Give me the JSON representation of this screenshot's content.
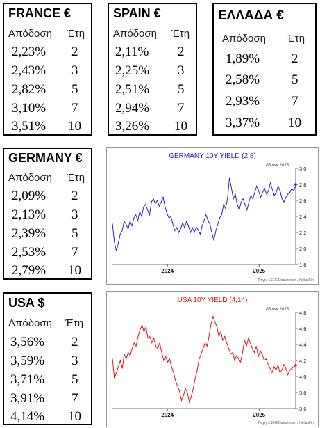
{
  "tables": [
    {
      "id": "france",
      "title": "FRANCE €",
      "col1": "Απόδοση",
      "col2": "Έτη",
      "rows": [
        [
          "2,23%",
          "2"
        ],
        [
          "2,43%",
          "3"
        ],
        [
          "2,82%",
          "5"
        ],
        [
          "3,10%",
          "7"
        ],
        [
          "3,51%",
          "10"
        ]
      ]
    },
    {
      "id": "spain",
      "title": "SPAIN €",
      "col1": "Απόδοση",
      "col2": "Έτη",
      "rows": [
        [
          "2,11%",
          "2"
        ],
        [
          "2,25%",
          "3"
        ],
        [
          "2,51%",
          "5"
        ],
        [
          "2,94%",
          "7"
        ],
        [
          "3,26%",
          "10"
        ]
      ]
    },
    {
      "id": "greece",
      "title": "ΕΛΛΑΔΑ €",
      "col1": "Απόδοση",
      "col2": "Έτη",
      "rows": [
        [
          "1,89%",
          "2"
        ],
        [
          "2,58%",
          "5"
        ],
        [
          "2,93%",
          "7"
        ],
        [
          "3,37%",
          "10"
        ]
      ]
    },
    {
      "id": "germany",
      "title": "GERMANY €",
      "col1": "Απόδοση",
      "col2": "Έτη",
      "rows": [
        [
          "2,09%",
          "2"
        ],
        [
          "2,13%",
          "3"
        ],
        [
          "2,39%",
          "5"
        ],
        [
          "2,53%",
          "7"
        ],
        [
          "2,79%",
          "10"
        ]
      ]
    },
    {
      "id": "usa",
      "title": "USA $",
      "col1": "Απόδοση",
      "col2": "Έτη",
      "rows": [
        [
          "3,56%",
          "2"
        ],
        [
          "3,59%",
          "3"
        ],
        [
          "3,71%",
          "5"
        ],
        [
          "3,91%",
          "7"
        ],
        [
          "4,14%",
          "10"
        ]
      ]
    }
  ],
  "chart_data": [
    {
      "type": "line",
      "id": "germany-chart",
      "title": "GERMANY 10Y YIELD  (2,8)",
      "date_label": "05 Δεκ 2025",
      "source": "Πηγή: LSEG Datastream / HellasFin",
      "color": "#2222bb",
      "ylim": [
        1.8,
        3.0
      ],
      "yticks": [
        "1,8",
        "2,0",
        "2,2",
        "2,4",
        "2,6",
        "2,8",
        "3,0"
      ],
      "xticks": [
        "2024",
        "2025"
      ],
      "values": [
        2.31,
        2.08,
        1.97,
        2.06,
        2.18,
        2.22,
        2.34,
        2.3,
        2.24,
        2.34,
        2.28,
        2.38,
        2.42,
        2.35,
        2.46,
        2.4,
        2.52,
        2.55,
        2.48,
        2.42,
        2.58,
        2.62,
        2.56,
        2.6,
        2.53,
        2.58,
        2.64,
        2.52,
        2.44,
        2.38,
        2.4,
        2.3,
        2.22,
        2.26,
        2.2,
        2.25,
        2.32,
        2.26,
        2.34,
        2.28,
        2.2,
        2.26,
        2.2,
        2.27,
        2.23,
        2.18,
        2.28,
        2.35,
        2.42,
        2.35,
        2.3,
        2.2,
        2.1,
        2.22,
        2.3,
        2.38,
        2.42,
        2.55,
        2.5,
        2.62,
        2.88,
        2.76,
        2.62,
        2.68,
        2.55,
        2.48,
        2.58,
        2.62,
        2.55,
        2.48,
        2.58,
        2.66,
        2.62,
        2.7,
        2.78,
        2.72,
        2.64,
        2.7,
        2.75,
        2.68,
        2.72,
        2.82,
        2.74,
        2.66,
        2.7,
        2.78,
        2.72,
        2.62,
        2.58,
        2.64,
        2.68,
        2.7,
        2.75,
        2.72,
        2.8
      ]
    },
    {
      "type": "line",
      "id": "usa-chart",
      "title": "USA 10Y YIELD  (4,14)",
      "date_label": "05 Δεκ 2025",
      "source": "Πηγή: LSEG Datastream / HellasFin",
      "color": "#dd1111",
      "ylim": [
        3.6,
        4.8
      ],
      "yticks": [
        "3,6",
        "3,8",
        "4,0",
        "4,2",
        "4,4",
        "4,6",
        "4,8"
      ],
      "xticks": [
        "2024",
        "2025"
      ],
      "values": [
        4.22,
        3.98,
        4.05,
        4.12,
        4.2,
        4.1,
        4.28,
        4.22,
        4.3,
        4.26,
        4.35,
        4.42,
        4.38,
        4.5,
        4.58,
        4.64,
        4.56,
        4.62,
        4.48,
        4.5,
        4.42,
        4.48,
        4.38,
        4.35,
        4.42,
        4.3,
        4.2,
        4.25,
        4.18,
        4.22,
        4.12,
        4.05,
        3.95,
        3.88,
        3.82,
        3.7,
        3.76,
        3.85,
        3.8,
        3.68,
        3.75,
        3.85,
        3.98,
        4.08,
        4.22,
        4.28,
        4.35,
        4.42,
        4.38,
        4.5,
        4.65,
        4.75,
        4.68,
        4.62,
        4.5,
        4.56,
        4.45,
        4.5,
        4.42,
        4.35,
        4.28,
        4.3,
        4.2,
        4.26,
        4.22,
        4.18,
        4.3,
        4.45,
        4.38,
        4.48,
        4.42,
        4.35,
        4.3,
        4.38,
        4.25,
        4.32,
        4.28,
        4.2,
        4.22,
        4.15,
        4.1,
        4.05,
        4.12,
        4.08,
        4.14,
        4.05,
        4.08,
        4.15,
        4.1,
        4.02,
        4.08,
        4.1,
        4.12,
        4.14
      ]
    }
  ]
}
